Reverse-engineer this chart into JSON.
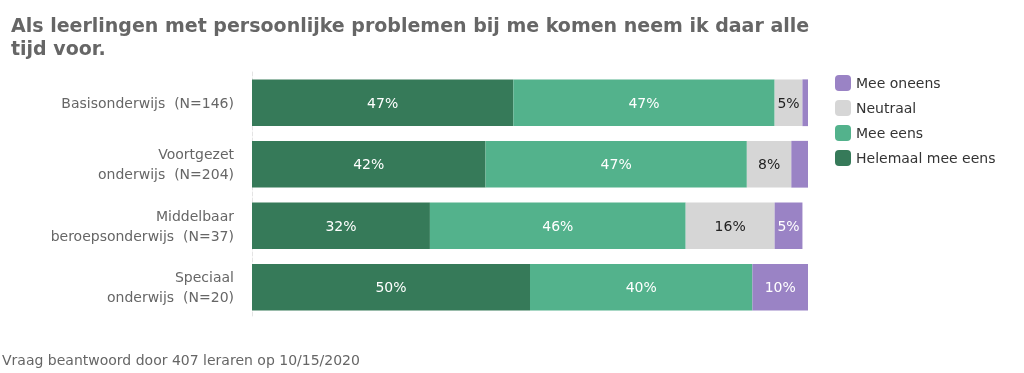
{
  "chart_data": {
    "type": "bar",
    "orientation": "horizontal",
    "stacked": true,
    "title": "Als leerlingen met persoonlijke problemen bij me komen neem ik daar alle tijd voor.",
    "categories": [
      "Basisonderwijs (N=146)",
      "Voortgezet onderwijs (N=204)",
      "Middelbaar beroepsonderwijs (N=37)",
      "Speciaal onderwijs (N=20)"
    ],
    "series": [
      {
        "name": "Helemaal mee eens",
        "color": "#367a59",
        "values": [
          47,
          42,
          32,
          50
        ],
        "value_labels": [
          "47%",
          "42%",
          "32%",
          "50%"
        ]
      },
      {
        "name": "Mee eens",
        "color": "#53b28c",
        "values": [
          47,
          47,
          46,
          40
        ],
        "value_labels": [
          "47%",
          "47%",
          "46%",
          "40%"
        ]
      },
      {
        "name": "Neutraal",
        "color": "#d6d6d6",
        "values": [
          5,
          8,
          16,
          0
        ],
        "value_labels": [
          "5%",
          "8%",
          "16%",
          null
        ]
      },
      {
        "name": "Mee oneens",
        "color": "#9a83c5",
        "values": [
          1,
          3,
          5,
          10
        ],
        "value_labels": [
          null,
          null,
          "5%",
          "10%"
        ]
      }
    ],
    "xlim": [
      0,
      100
    ],
    "tick_labels": "y",
    "grid": false,
    "legend": "top right",
    "annotations": [
      "Vraag beantwoord door 407 leraren op 10/15/2020"
    ]
  }
}
